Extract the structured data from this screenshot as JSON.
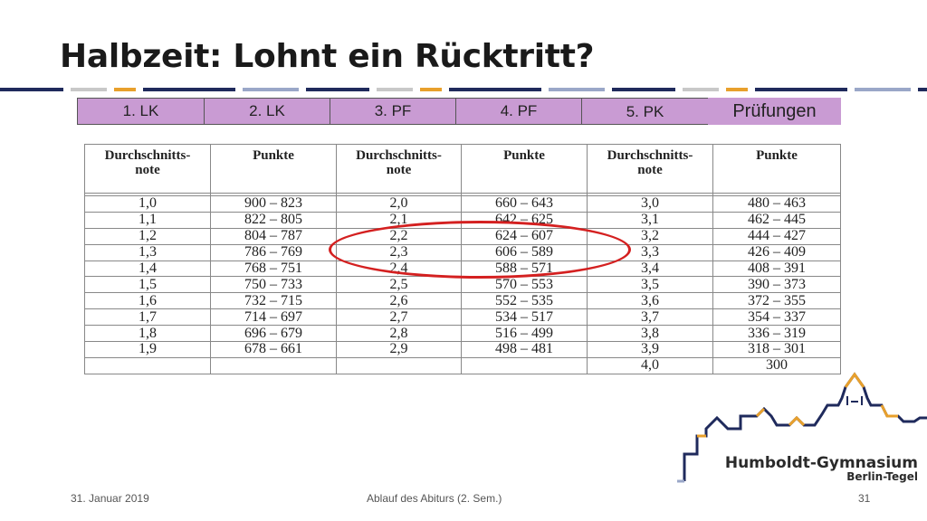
{
  "title": "Halbzeit: Lohnt ein Rücktritt?",
  "tabs": [
    "1. LK",
    "2. LK",
    "3. PF",
    "4. PF",
    "5. PK",
    "Prüfungen"
  ],
  "table": {
    "headers": [
      "Durchschnitts-\nnote",
      "Punkte",
      "Durchschnitts-\nnote",
      "Punkte",
      "Durchschnitts-\nnote",
      "Punkte"
    ],
    "rows": [
      [
        "1,0",
        "900 – 823",
        "2,0",
        "660 – 643",
        "3,0",
        "480 – 463"
      ],
      [
        "1,1",
        "822 – 805",
        "2,1",
        "642 – 625",
        "3,1",
        "462 – 445"
      ],
      [
        "1,2",
        "804 – 787",
        "2,2",
        "624 – 607",
        "3,2",
        "444 – 427"
      ],
      [
        "1,3",
        "786 – 769",
        "2,3",
        "606 – 589",
        "3,3",
        "426 – 409"
      ],
      [
        "1,4",
        "768 – 751",
        "2,4",
        "588 – 571",
        "3,4",
        "408 – 391"
      ],
      [
        "1,5",
        "750 – 733",
        "2,5",
        "570 – 553",
        "3,5",
        "390 – 373"
      ],
      [
        "1,6",
        "732 – 715",
        "2,6",
        "552 – 535",
        "3,6",
        "372 – 355"
      ],
      [
        "1,7",
        "714 – 697",
        "2,7",
        "534 – 517",
        "3,7",
        "354 – 337"
      ],
      [
        "1,8",
        "696 – 679",
        "2,8",
        "516 – 499",
        "3,8",
        "336 – 319"
      ],
      [
        "1,9",
        "678 – 661",
        "2,9",
        "498 – 481",
        "3,9",
        "318 – 301"
      ],
      [
        "",
        "",
        "",
        "",
        "4,0",
        "300"
      ]
    ]
  },
  "logo": {
    "name": "Humboldt-Gymnasium",
    "sub": "Berlin-Tegel"
  },
  "footer": {
    "date": "31. Januar 2019",
    "center": "Ablauf des Abiturs (2. Sem.)",
    "page": "31"
  },
  "colors": {
    "tab_fill": "#c99bd3",
    "highlight": "#d42020",
    "logo_navy": "#1f2a5c",
    "logo_orange": "#e8a02c"
  }
}
